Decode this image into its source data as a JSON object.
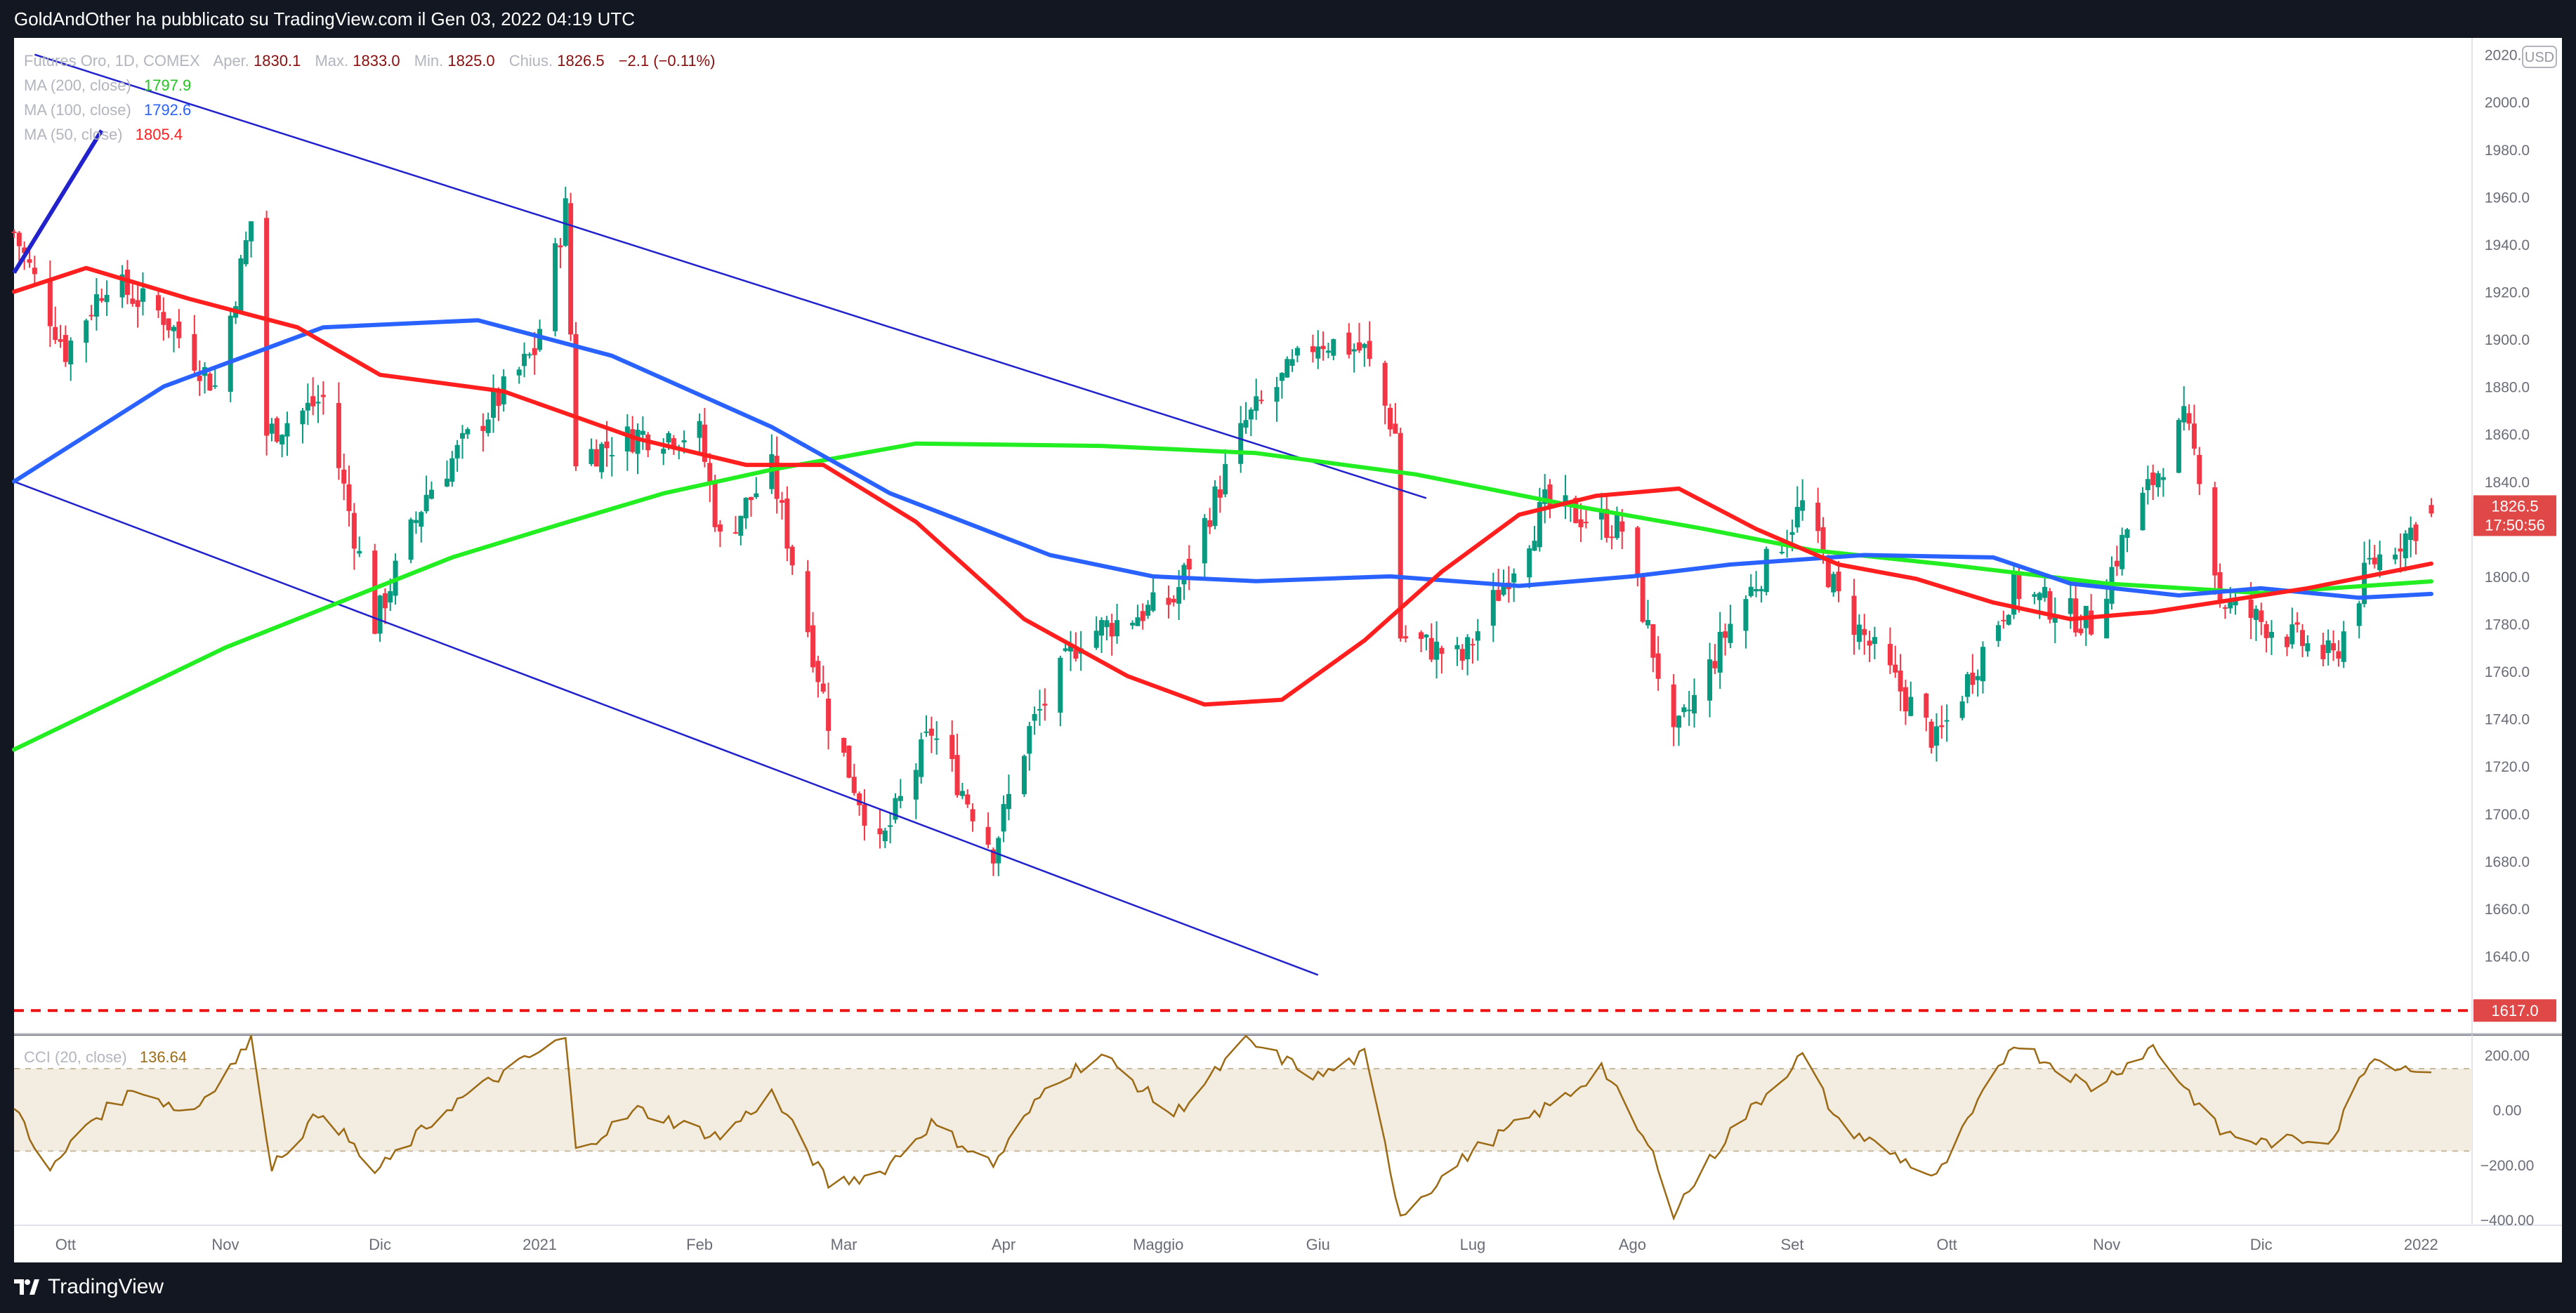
{
  "header": {
    "publisher_line": "GoldAndOther ha pubblicato su TradingView.com il Gen 03, 2022 04:19 UTC"
  },
  "legend": {
    "instrument": "Futures Oro, 1D, COMEX",
    "ohlc": [
      {
        "label": "Aper.",
        "value": "1830.1"
      },
      {
        "label": "Max.",
        "value": "1833.0"
      },
      {
        "label": "Min.",
        "value": "1825.0"
      },
      {
        "label": "Chius.",
        "value": "1826.5"
      }
    ],
    "change": "−2.1 (−0.11%)",
    "ma": [
      {
        "label": "MA (200, close)",
        "value": "1797.9",
        "color": "#22ee22"
      },
      {
        "label": "MA (100, close)",
        "value": "1792.6",
        "color": "#2962ff"
      },
      {
        "label": "MA (50, close)",
        "value": "1805.4",
        "color": "#ff1f1f"
      }
    ]
  },
  "price_axis": {
    "currency": "USD",
    "ticks": [
      "2020.0",
      "2000.0",
      "1980.0",
      "1960.0",
      "1940.0",
      "1920.0",
      "1900.0",
      "1880.0",
      "1860.0",
      "1840.0",
      "1820.0",
      "1800.0",
      "1780.0",
      "1760.0",
      "1740.0",
      "1720.0",
      "1700.0",
      "1680.0",
      "1660.0",
      "1640.0"
    ],
    "last_price_label": "1826.5",
    "countdown_label": "17:50:56",
    "level_label": "1617.0"
  },
  "cci_legend": {
    "label": "CCI (20, close)",
    "value": "136.64"
  },
  "cci_axis": {
    "ticks": [
      "200.00",
      "0.00",
      "−200.00",
      "−400.00"
    ]
  },
  "time_axis": {
    "labels": [
      "Ott",
      "Nov",
      "Dic",
      "2021",
      "Feb",
      "Mar",
      "Apr",
      "Maggio",
      "Giu",
      "Lug",
      "Ago",
      "Set",
      "Ott",
      "Nov",
      "Dic",
      "2022"
    ]
  },
  "footer": {
    "brand": "TradingView"
  },
  "colors": {
    "background": "#131722",
    "panel": "#ffffff",
    "up_candle": "#089981",
    "down_candle": "#f23645",
    "channel": "#2222cc",
    "cci_line": "#9c6a14",
    "cci_band": "#f3ece0",
    "level_line": "#ee1111",
    "price_tag": "#e04848"
  },
  "chart_data": {
    "type": "candlestick",
    "title": "Futures Oro, 1D, COMEX",
    "ylim": [
      1607,
      2027
    ],
    "grid": false,
    "time_range": [
      "2020-09-21",
      "2022-01-03"
    ],
    "last_candle": {
      "open": 1830.1,
      "high": 1833.0,
      "low": 1825.0,
      "close": 1826.5
    },
    "price_path": [
      [
        "2020-09-21",
        1945
      ],
      [
        "2020-10-01",
        1895
      ],
      [
        "2020-10-09",
        1925
      ],
      [
        "2020-10-20",
        1910
      ],
      [
        "2020-10-30",
        1880
      ],
      [
        "2020-11-06",
        1950
      ],
      [
        "2020-11-09",
        1860
      ],
      [
        "2020-11-20",
        1875
      ],
      [
        "2020-11-30",
        1780
      ],
      [
        "2020-12-10",
        1835
      ],
      [
        "2020-12-31",
        1895
      ],
      [
        "2021-01-06",
        1955
      ],
      [
        "2021-01-08",
        1850
      ],
      [
        "2021-01-20",
        1860
      ],
      [
        "2021-02-01",
        1860
      ],
      [
        "2021-02-05",
        1815
      ],
      [
        "2021-02-15",
        1845
      ],
      [
        "2021-02-26",
        1740
      ],
      [
        "2021-03-08",
        1685
      ],
      [
        "2021-03-18",
        1735
      ],
      [
        "2021-03-30",
        1685
      ],
      [
        "2021-04-06",
        1735
      ],
      [
        "2021-04-16",
        1775
      ],
      [
        "2021-05-04",
        1790
      ],
      [
        "2021-05-18",
        1865
      ],
      [
        "2021-06-01",
        1900
      ],
      [
        "2021-06-10",
        1895
      ],
      [
        "2021-06-16",
        1860
      ],
      [
        "2021-06-17",
        1775
      ],
      [
        "2021-06-29",
        1765
      ],
      [
        "2021-07-15",
        1830
      ],
      [
        "2021-07-30",
        1820
      ],
      [
        "2021-08-06",
        1760
      ],
      [
        "2021-08-09",
        1730
      ],
      [
        "2021-08-20",
        1780
      ],
      [
        "2021-09-03",
        1830
      ],
      [
        "2021-09-10",
        1790
      ],
      [
        "2021-09-29",
        1730
      ],
      [
        "2021-10-14",
        1795
      ],
      [
        "2021-10-29",
        1780
      ],
      [
        "2021-11-05",
        1820
      ],
      [
        "2021-11-16",
        1865
      ],
      [
        "2021-11-19",
        1845
      ],
      [
        "2021-11-23",
        1790
      ],
      [
        "2021-12-15",
        1765
      ],
      [
        "2021-12-22",
        1805
      ],
      [
        "2022-01-03",
        1826.5
      ]
    ],
    "series": [
      {
        "name": "MA (200, close)",
        "color": "#22ee22",
        "last_value": 1797.9,
        "values": [
          [
            "2020-09-21",
            1727
          ],
          [
            "2020-11-01",
            1770
          ],
          [
            "2020-12-15",
            1808
          ],
          [
            "2021-01-05",
            1822
          ],
          [
            "2021-01-25",
            1835
          ],
          [
            "2021-02-15",
            1845
          ],
          [
            "2021-03-15",
            1856
          ],
          [
            "2021-04-20",
            1855
          ],
          [
            "2021-05-20",
            1852
          ],
          [
            "2021-06-20",
            1843
          ],
          [
            "2021-07-20",
            1830
          ],
          [
            "2021-08-15",
            1820
          ],
          [
            "2021-09-05",
            1811
          ],
          [
            "2021-10-01",
            1805
          ],
          [
            "2021-11-01",
            1797
          ],
          [
            "2021-12-01",
            1793
          ],
          [
            "2022-01-03",
            1797.9
          ]
        ]
      },
      {
        "name": "MA (100, close)",
        "color": "#2962ff",
        "last_value": 1792.6,
        "values": [
          [
            "2020-09-21",
            1840
          ],
          [
            "2020-10-20",
            1880
          ],
          [
            "2020-11-20",
            1905
          ],
          [
            "2020-12-20",
            1908
          ],
          [
            "2021-01-15",
            1893
          ],
          [
            "2021-02-15",
            1863
          ],
          [
            "2021-03-10",
            1835
          ],
          [
            "2021-04-10",
            1809
          ],
          [
            "2021-04-30",
            1800
          ],
          [
            "2021-05-20",
            1798
          ],
          [
            "2021-06-15",
            1800
          ],
          [
            "2021-07-10",
            1796
          ],
          [
            "2021-08-01",
            1800
          ],
          [
            "2021-08-20",
            1805
          ],
          [
            "2021-09-15",
            1809
          ],
          [
            "2021-10-10",
            1808
          ],
          [
            "2021-10-25",
            1797
          ],
          [
            "2021-11-15",
            1792
          ],
          [
            "2021-12-01",
            1795
          ],
          [
            "2021-12-20",
            1791
          ],
          [
            "2022-01-03",
            1792.6
          ]
        ]
      },
      {
        "name": "MA (50, close)",
        "color": "#ff1f1f",
        "last_value": 1805.4,
        "values": [
          [
            "2020-09-21",
            1920
          ],
          [
            "2020-10-05",
            1930
          ],
          [
            "2020-10-25",
            1917
          ],
          [
            "2020-11-15",
            1905
          ],
          [
            "2020-12-01",
            1885
          ],
          [
            "2020-12-25",
            1878
          ],
          [
            "2021-01-20",
            1858
          ],
          [
            "2021-02-10",
            1847
          ],
          [
            "2021-02-25",
            1847
          ],
          [
            "2021-03-15",
            1823
          ],
          [
            "2021-04-05",
            1782
          ],
          [
            "2021-04-25",
            1758
          ],
          [
            "2021-05-10",
            1746
          ],
          [
            "2021-05-25",
            1748
          ],
          [
            "2021-06-10",
            1773
          ],
          [
            "2021-06-25",
            1802
          ],
          [
            "2021-07-10",
            1826
          ],
          [
            "2021-07-25",
            1834
          ],
          [
            "2021-08-10",
            1837
          ],
          [
            "2021-08-25",
            1820
          ],
          [
            "2021-09-10",
            1805
          ],
          [
            "2021-09-25",
            1799
          ],
          [
            "2021-10-10",
            1789
          ],
          [
            "2021-10-25",
            1782
          ],
          [
            "2021-11-10",
            1785
          ],
          [
            "2021-11-25",
            1790
          ],
          [
            "2021-12-10",
            1795
          ],
          [
            "2022-01-03",
            1805.4
          ]
        ]
      }
    ],
    "channel_lines": [
      {
        "from": [
          "2020-09-25",
          2020
        ],
        "to": [
          "2021-06-22",
          1833
        ]
      },
      {
        "from": [
          "2020-09-21",
          1840
        ],
        "to": [
          "2021-06-01",
          1632
        ]
      },
      {
        "from": [
          "2020-09-21",
          1928
        ],
        "to": [
          "2020-10-08",
          1988
        ]
      }
    ],
    "horizontal_levels": [
      1617.0
    ],
    "cci": {
      "name": "CCI (20, close)",
      "last_value": 136.64,
      "ylim": [
        -420,
        270
      ],
      "band": [
        -150,
        150
      ],
      "values": [
        [
          "2020-09-21",
          20
        ],
        [
          "2020-09-28",
          -230
        ],
        [
          "2020-10-05",
          -50
        ],
        [
          "2020-10-15",
          80
        ],
        [
          "2020-10-25",
          -20
        ],
        [
          "2020-11-06",
          250
        ],
        [
          "2020-11-10",
          -200
        ],
        [
          "2020-11-20",
          0
        ],
        [
          "2020-11-30",
          -230
        ],
        [
          "2020-12-15",
          20
        ],
        [
          "2020-12-31",
          200
        ],
        [
          "2021-01-06",
          260
        ],
        [
          "2021-01-08",
          -150
        ],
        [
          "2021-01-20",
          0
        ],
        [
          "2021-02-05",
          -100
        ],
        [
          "2021-02-15",
          60
        ],
        [
          "2021-02-26",
          -270
        ],
        [
          "2021-03-08",
          -230
        ],
        [
          "2021-03-18",
          -50
        ],
        [
          "2021-03-30",
          -200
        ],
        [
          "2021-04-10",
          100
        ],
        [
          "2021-04-20",
          200
        ],
        [
          "2021-05-04",
          -20
        ],
        [
          "2021-05-18",
          250
        ],
        [
          "2021-06-01",
          120
        ],
        [
          "2021-06-10",
          200
        ],
        [
          "2021-06-17",
          -380
        ],
        [
          "2021-07-01",
          -150
        ],
        [
          "2021-07-20",
          60
        ],
        [
          "2021-07-26",
          160
        ],
        [
          "2021-08-06",
          -200
        ],
        [
          "2021-08-09",
          -370
        ],
        [
          "2021-08-20",
          -80
        ],
        [
          "2021-09-03",
          200
        ],
        [
          "2021-09-10",
          -50
        ],
        [
          "2021-09-29",
          -250
        ],
        [
          "2021-10-14",
          250
        ],
        [
          "2021-10-29",
          80
        ],
        [
          "2021-11-10",
          230
        ],
        [
          "2021-11-23",
          -80
        ],
        [
          "2021-12-01",
          -120
        ],
        [
          "2021-12-15",
          -100
        ],
        [
          "2021-12-22",
          190
        ],
        [
          "2022-01-03",
          136.64
        ]
      ]
    },
    "x_tick_labels": [
      "Ott",
      "Nov",
      "Dic",
      "2021",
      "Feb",
      "Mar",
      "Apr",
      "Maggio",
      "Giu",
      "Lug",
      "Ago",
      "Set",
      "Ott",
      "Nov",
      "Dic",
      "2022"
    ]
  }
}
